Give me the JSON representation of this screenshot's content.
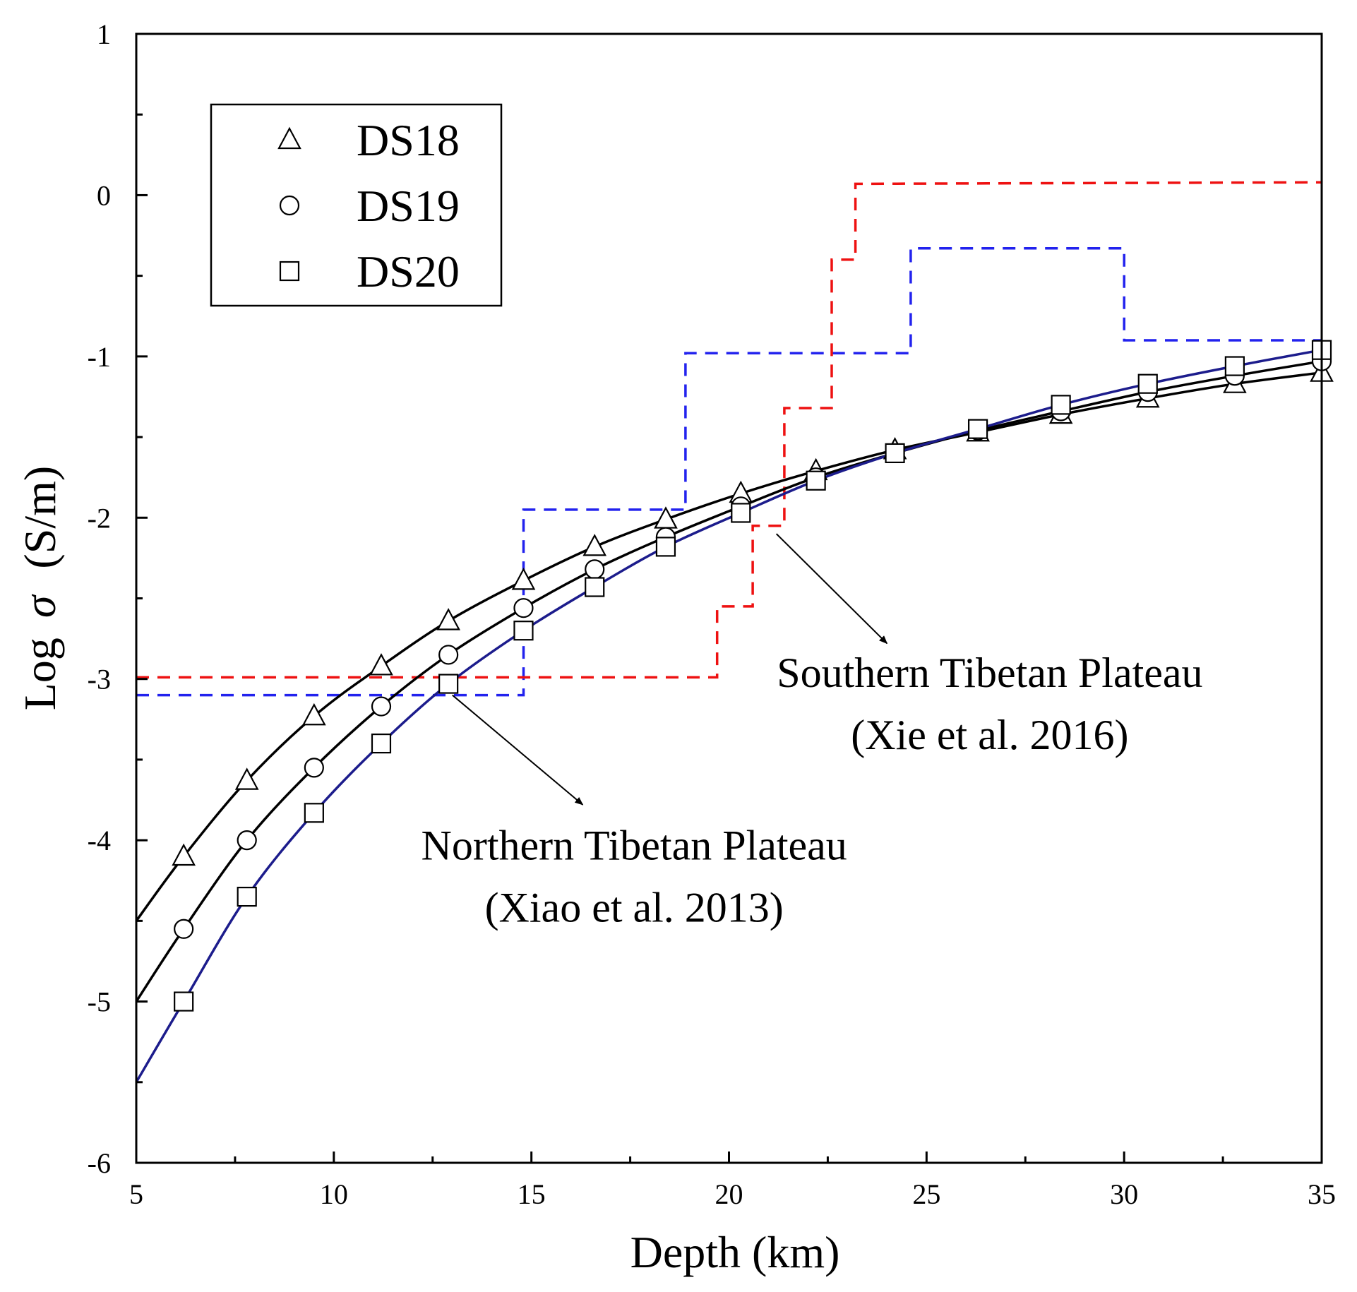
{
  "chart_data": {
    "type": "line",
    "title": "",
    "xlabel": "Depth (km)",
    "ylabel_prefix": "Log",
    "ylabel_symbol": "σ",
    "ylabel_unit": "(S/m)",
    "xlim": [
      5,
      35
    ],
    "ylim": [
      -6,
      1
    ],
    "x_ticks": [
      5,
      10,
      15,
      20,
      25,
      30,
      35
    ],
    "x_tick_labels": [
      "5",
      "10",
      "15",
      "20",
      "25",
      "30",
      "35"
    ],
    "y_ticks": [
      -6,
      -5,
      -4,
      -3,
      -2,
      -1,
      0,
      1
    ],
    "y_tick_labels": [
      "-6",
      "-5",
      "-4",
      "-3",
      "-2",
      "-1",
      "0",
      "1"
    ],
    "grid": false,
    "legend": {
      "position": "top-left",
      "entries": [
        {
          "label": "DS18",
          "marker": "triangle"
        },
        {
          "label": "DS19",
          "marker": "circle"
        },
        {
          "label": "DS20",
          "marker": "square"
        }
      ]
    },
    "series": [
      {
        "name": "DS18",
        "marker": "triangle",
        "line_color": "#000000",
        "x": [
          5,
          6.2,
          7.8,
          9.5,
          11.2,
          12.9,
          14.8,
          16.6,
          18.4,
          20.3,
          22.2,
          24.2,
          26.3,
          28.4,
          30.6,
          32.8,
          35
        ],
        "y": [
          -4.5,
          -4.1,
          -3.63,
          -3.23,
          -2.92,
          -2.64,
          -2.39,
          -2.18,
          -2.01,
          -1.85,
          -1.71,
          -1.58,
          -1.47,
          -1.36,
          -1.26,
          -1.17,
          -1.1
        ],
        "marker_x": [
          6.2,
          7.8,
          9.5,
          11.2,
          12.9,
          14.8,
          16.6,
          18.4,
          20.3,
          22.2,
          24.2,
          26.3,
          28.4,
          30.6,
          32.8,
          35
        ],
        "marker_y": [
          -4.1,
          -3.63,
          -3.23,
          -2.92,
          -2.64,
          -2.39,
          -2.18,
          -2.01,
          -1.85,
          -1.71,
          -1.58,
          -1.47,
          -1.36,
          -1.26,
          -1.17,
          -1.1
        ]
      },
      {
        "name": "DS19",
        "marker": "circle",
        "line_color": "#000000",
        "x": [
          5,
          6.2,
          7.8,
          9.5,
          11.2,
          12.9,
          14.8,
          16.6,
          18.4,
          20.3,
          22.2,
          24.2,
          26.3,
          28.4,
          30.6,
          32.8,
          35
        ],
        "y": [
          -5.0,
          -4.55,
          -4.0,
          -3.55,
          -3.17,
          -2.85,
          -2.56,
          -2.32,
          -2.12,
          -1.93,
          -1.75,
          -1.6,
          -1.46,
          -1.34,
          -1.22,
          -1.12,
          -1.03
        ],
        "marker_x": [
          6.2,
          7.8,
          9.5,
          11.2,
          12.9,
          14.8,
          16.6,
          18.4,
          20.3,
          22.2,
          24.2,
          26.3,
          28.4,
          30.6,
          32.8,
          35
        ],
        "marker_y": [
          -4.55,
          -4.0,
          -3.55,
          -3.17,
          -2.85,
          -2.56,
          -2.32,
          -2.12,
          -1.93,
          -1.75,
          -1.6,
          -1.46,
          -1.34,
          -1.22,
          -1.12,
          -1.03
        ]
      },
      {
        "name": "DS20",
        "marker": "square",
        "line_color": "#1c1c8c",
        "x": [
          5,
          6.2,
          7.8,
          9.5,
          11.2,
          12.9,
          14.8,
          16.6,
          18.4,
          20.3,
          22.2,
          24.2,
          26.3,
          28.4,
          30.6,
          32.8,
          35
        ],
        "y": [
          -5.5,
          -5.0,
          -4.35,
          -3.83,
          -3.4,
          -3.03,
          -2.7,
          -2.43,
          -2.18,
          -1.97,
          -1.77,
          -1.6,
          -1.45,
          -1.3,
          -1.17,
          -1.06,
          -0.96
        ],
        "marker_x": [
          6.2,
          7.8,
          9.5,
          11.2,
          12.9,
          14.8,
          16.6,
          18.4,
          20.3,
          22.2,
          24.2,
          26.3,
          28.4,
          30.6,
          32.8,
          35
        ],
        "marker_y": [
          -5.0,
          -4.35,
          -3.83,
          -3.4,
          -3.03,
          -2.7,
          -2.43,
          -2.18,
          -1.97,
          -1.77,
          -1.6,
          -1.45,
          -1.3,
          -1.17,
          -1.06,
          -0.96
        ]
      }
    ],
    "step_profiles": [
      {
        "name": "Northern Tibetan Plateau",
        "color": "#2222ee",
        "dash": true,
        "points": [
          [
            5,
            -3.1
          ],
          [
            14.8,
            -3.1
          ],
          [
            14.8,
            -1.95
          ],
          [
            18.9,
            -1.95
          ],
          [
            18.9,
            -0.98
          ],
          [
            24.6,
            -0.98
          ],
          [
            24.6,
            -0.33
          ],
          [
            30,
            -0.33
          ],
          [
            30,
            -0.9
          ],
          [
            35,
            -0.9
          ]
        ]
      },
      {
        "name": "Southern Tibetan Plateau",
        "color": "#ee1111",
        "dash": true,
        "points": [
          [
            5,
            -2.99
          ],
          [
            19.7,
            -2.99
          ],
          [
            19.7,
            -2.55
          ],
          [
            20.6,
            -2.55
          ],
          [
            20.6,
            -2.05
          ],
          [
            21.4,
            -2.05
          ],
          [
            21.4,
            -1.32
          ],
          [
            22.6,
            -1.32
          ],
          [
            22.6,
            -0.4
          ],
          [
            23.2,
            -0.4
          ],
          [
            23.2,
            0.07
          ],
          [
            35,
            0.08
          ]
        ]
      }
    ],
    "annotations": [
      {
        "id": "southern",
        "line1": "Southern Tibetan Plateau",
        "line2": "(Xie et al. 2016)",
        "text_anchor": [
          26.6,
          -3.05
        ],
        "arrow_from": [
          21.2,
          -2.1
        ],
        "arrow_to": [
          24.0,
          -2.78
        ]
      },
      {
        "id": "northern",
        "line1": "Northern Tibetan Plateau",
        "line2": "(Xiao et al. 2013)",
        "text_anchor": [
          17.6,
          -4.12
        ],
        "arrow_from": [
          13.0,
          -3.1
        ],
        "arrow_to": [
          16.3,
          -3.78
        ]
      }
    ]
  }
}
